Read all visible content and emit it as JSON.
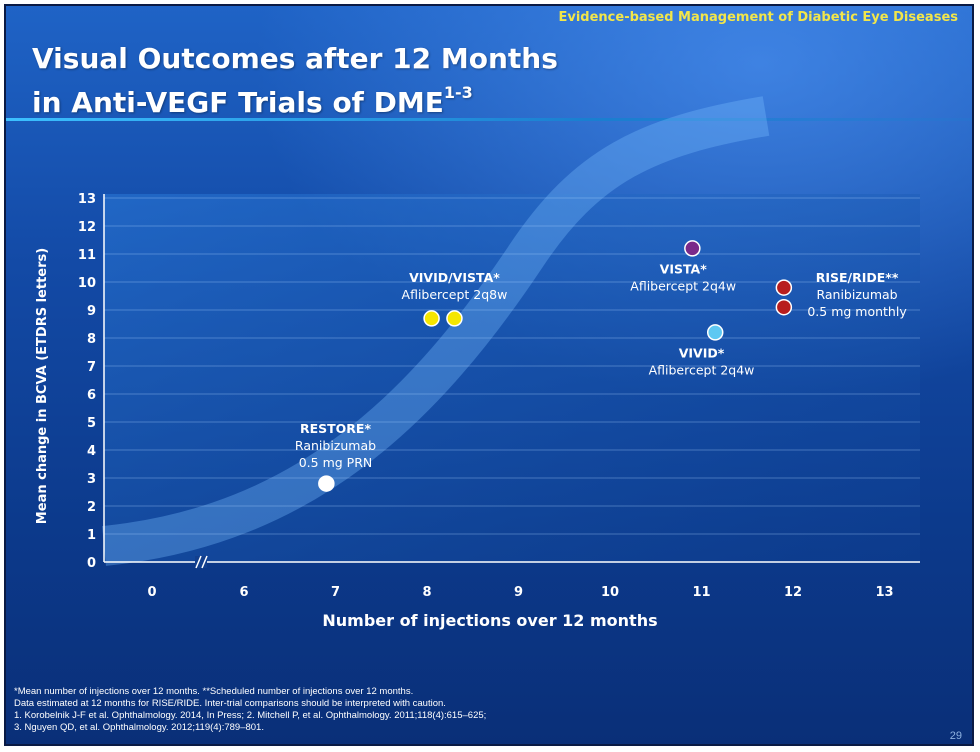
{
  "header": {
    "banner": "Evidence-based Management of Diabetic Eye Diseases"
  },
  "title": {
    "line1": "Visual Outcomes after 12 Months",
    "line2": "in Anti-VEGF Trials of DME",
    "superscript": "1-3"
  },
  "chart_data": {
    "type": "scatter",
    "xlabel": "Number of injections over 12 months",
    "ylabel": "Mean change in BCVA (ETDRS letters)",
    "x_ticks": [
      "0",
      "6",
      "7",
      "8",
      "9",
      "10",
      "11",
      "12",
      "13"
    ],
    "x_axis_break_between": [
      "0",
      "6"
    ],
    "y_ticks": [
      "0",
      "1",
      "2",
      "3",
      "4",
      "5",
      "6",
      "7",
      "8",
      "9",
      "10",
      "11",
      "12",
      "13"
    ],
    "ylim": [
      0,
      13
    ],
    "grid": "horizontal",
    "points": [
      {
        "x": 6.9,
        "y": 2.8,
        "color": "#ffffff"
      },
      {
        "x": 8.05,
        "y": 8.7,
        "color": "#f5e600"
      },
      {
        "x": 8.3,
        "y": 8.7,
        "color": "#f5e600"
      },
      {
        "x": 10.9,
        "y": 11.2,
        "color": "#7a2a8a"
      },
      {
        "x": 11.15,
        "y": 8.2,
        "color": "#5ec8f2"
      },
      {
        "x": 11.9,
        "y": 9.8,
        "color": "#b81e1e"
      },
      {
        "x": 11.9,
        "y": 9.1,
        "color": "#b81e1e"
      }
    ],
    "annotations": [
      {
        "lines": [
          "RESTORE*",
          "Ranibizumab",
          "0.5 mg PRN"
        ],
        "x": 7.0,
        "y": 4.6
      },
      {
        "lines": [
          "VIVID/VISTA*",
          "Aflibercept 2q8w"
        ],
        "x": 8.3,
        "y": 10.0
      },
      {
        "lines": [
          "VISTA*",
          "Aflibercept 2q4w"
        ],
        "x": 10.8,
        "y": 10.3
      },
      {
        "lines": [
          "VIVID*",
          "Aflibercept 2q4w"
        ],
        "x": 11.0,
        "y": 7.3
      },
      {
        "lines": [
          "RISE/RIDE**",
          "Ranibizumab",
          "0.5 mg monthly"
        ],
        "x": 12.7,
        "y": 10.0
      }
    ]
  },
  "footnotes": [
    "*Mean number of injections over 12 months. **Scheduled number of injections over 12 months.",
    "Data estimated at 12 months for RISE/RIDE. Inter-trial comparisons should be interpreted with caution.",
    "1. Korobelnik J-F et al. Ophthalmology. 2014, In Press; 2. Mitchell P, et al. Ophthalmology. 2011;118(4):615–625;",
    "3. Nguyen QD, et al. Ophthalmology. 2012;119(4):789–801."
  ],
  "page_number": "29"
}
